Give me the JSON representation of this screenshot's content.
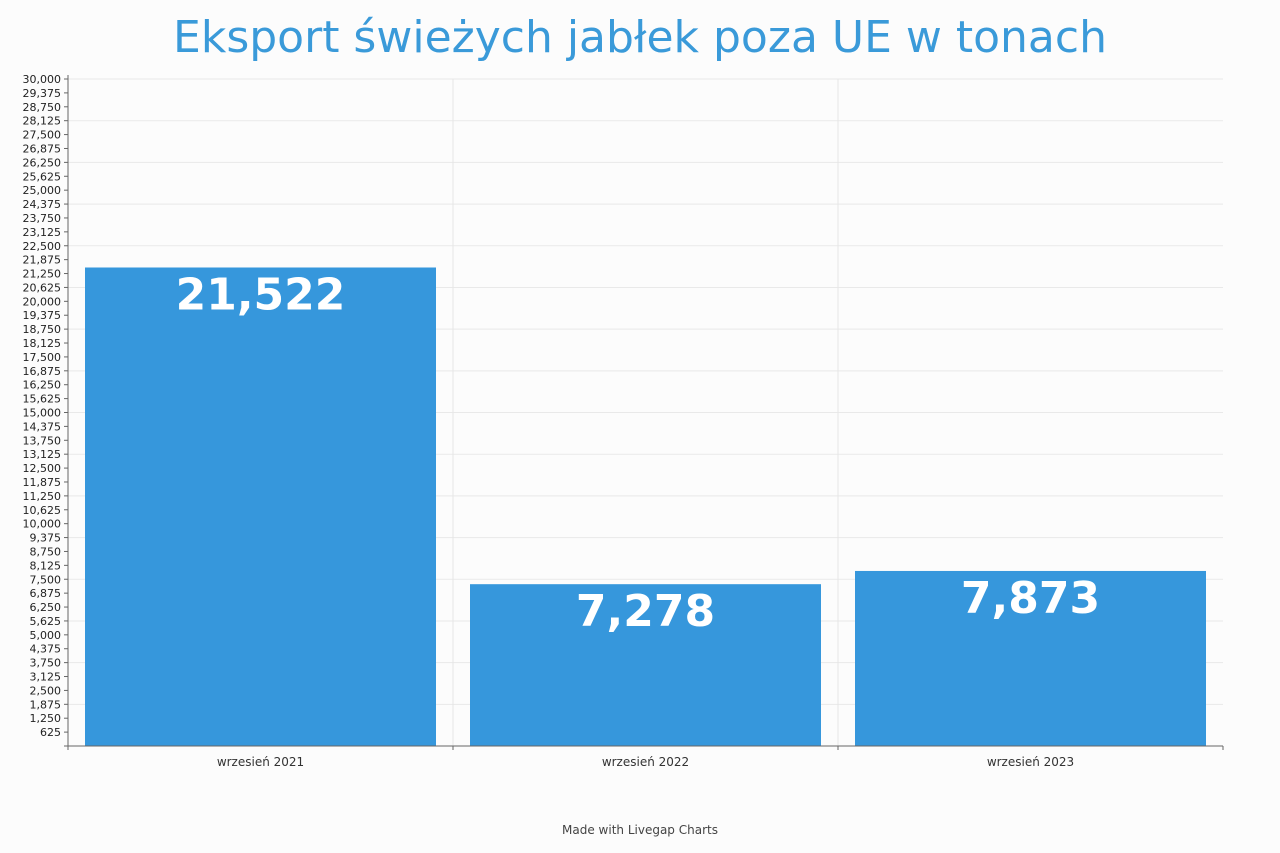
{
  "chart_data": {
    "type": "bar",
    "title": "Eksport świeżych jabłek poza UE w tonach",
    "categories": [
      "wrzesień 2021",
      "wrzesień 2022",
      "wrzesień 2023"
    ],
    "values": [
      21522,
      7278,
      7873
    ],
    "data_labels": [
      "21,522",
      "7,278",
      "7,873"
    ],
    "xlabel": "",
    "ylabel": "",
    "ylim": [
      0,
      30000
    ],
    "ytick_step": 625,
    "grid": true,
    "legend": "none",
    "bar_color": "#3697dc",
    "title_color": "#3a9ad9"
  },
  "footer": {
    "text": "Made with Livegap Charts"
  }
}
